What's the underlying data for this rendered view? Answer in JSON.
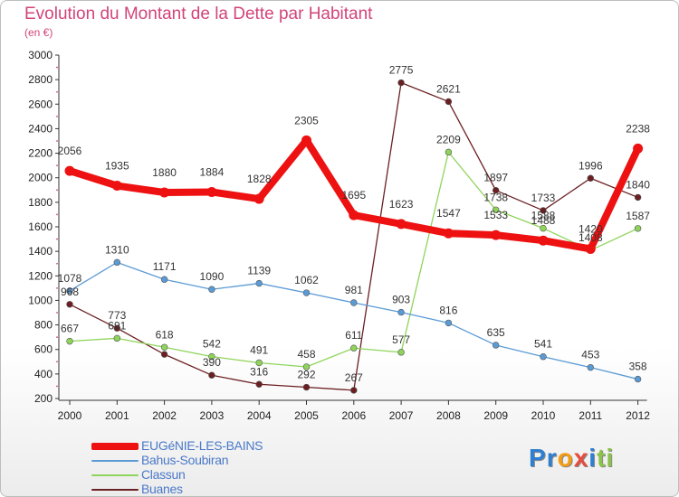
{
  "title": "Evolution du Montant de la Dette par Habitant",
  "subtitle": "(en €)",
  "logo": {
    "letters": [
      "P",
      "r",
      "o",
      "x",
      "i",
      "t",
      "i"
    ],
    "colors": [
      "#2f7fd0",
      "#2f7fd0",
      "#f39c12",
      "#e74c3c",
      "#2f7fd0",
      "#8bc34a",
      "#8bc34a"
    ]
  },
  "chart_data": {
    "type": "line",
    "title": "Evolution du Montant de la Dette par Habitant",
    "ylabel": "(en €)",
    "xlabel": "",
    "x": [
      "2000",
      "2001",
      "2002",
      "2003",
      "2004",
      "2005",
      "2006",
      "2007",
      "2008",
      "2009",
      "2010",
      "2011",
      "2012"
    ],
    "ylim": [
      200,
      3000
    ],
    "yticks": [
      200,
      400,
      600,
      800,
      1000,
      1200,
      1400,
      1600,
      1800,
      2000,
      2200,
      2400,
      2600,
      2800,
      3000
    ],
    "grid": false,
    "legend_position": "bottom-left",
    "series": [
      {
        "name": "EUGéNIE-LES-BAINS",
        "color": "#ee1111",
        "values": [
          2056,
          1935,
          1880,
          1884,
          1828,
          2305,
          1695,
          1623,
          1547,
          1533,
          1488,
          1420,
          2238
        ]
      },
      {
        "name": "Bahus-Soubiran",
        "color": "#5b9bd5",
        "values": [
          1078,
          1310,
          1171,
          1090,
          1139,
          1062,
          981,
          903,
          816,
          635,
          541,
          453,
          358
        ]
      },
      {
        "name": "Classun",
        "color": "#8fd45a",
        "values": [
          667,
          691,
          618,
          542,
          491,
          458,
          611,
          577,
          2209,
          1738,
          1588,
          1408,
          1587
        ]
      },
      {
        "name": "Buanes",
        "color": "#6b1f22",
        "values": [
          968,
          773,
          560,
          390,
          316,
          292,
          267,
          2775,
          2621,
          1897,
          1733,
          1996,
          1840
        ]
      }
    ],
    "data_labels": [
      [
        "2056",
        "1935",
        "1880",
        "1884",
        "1828",
        "2305",
        "1695",
        "1623",
        "1547",
        "1533",
        "1488",
        "1420",
        "2238"
      ],
      [
        "1078",
        "1310",
        "1171",
        "1090",
        "1139",
        "1062",
        "981",
        "903",
        "816",
        "635",
        "541",
        "453",
        "358"
      ],
      [
        "667",
        "691",
        "618",
        "542",
        "491",
        "458",
        "611",
        "577",
        "2209",
        "1738",
        "1588",
        "1408",
        "1587"
      ],
      [
        "968",
        "773",
        "",
        "390",
        "316",
        "292",
        "267",
        "2775",
        "2621",
        "1897",
        "1733",
        "1996",
        "1840"
      ]
    ]
  }
}
